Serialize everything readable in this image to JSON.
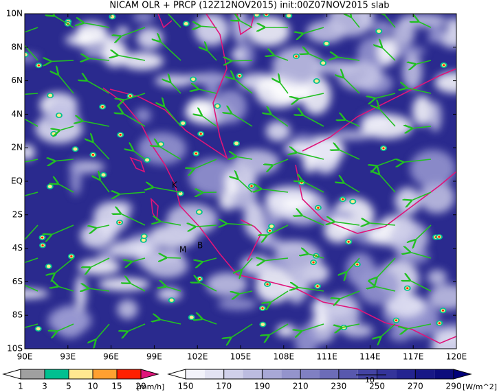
{
  "title": "NICAM OLR + PRCP (12Z12NOV2015) init:00Z07NOV2015 slab",
  "x_axis": {
    "labels": [
      "90E",
      "93E",
      "96E",
      "99E",
      "102E",
      "105E",
      "108E",
      "111E",
      "114E",
      "117E",
      "120E"
    ]
  },
  "y_axis": {
    "labels": [
      "10N",
      "8N",
      "6N",
      "4N",
      "2N",
      "EQ",
      "2S",
      "4S",
      "6S",
      "8S",
      "10S"
    ]
  },
  "places": [
    "K",
    "M",
    "B"
  ],
  "precip_legend": {
    "ticks": [
      1,
      3,
      5,
      10,
      15,
      20
    ],
    "unit": "[mm/h]"
  },
  "olr_legend": {
    "ticks": [
      150,
      170,
      190,
      210,
      230,
      250,
      270,
      290
    ],
    "unit": "[W/m^2]"
  },
  "vector_reference": "10"
}
